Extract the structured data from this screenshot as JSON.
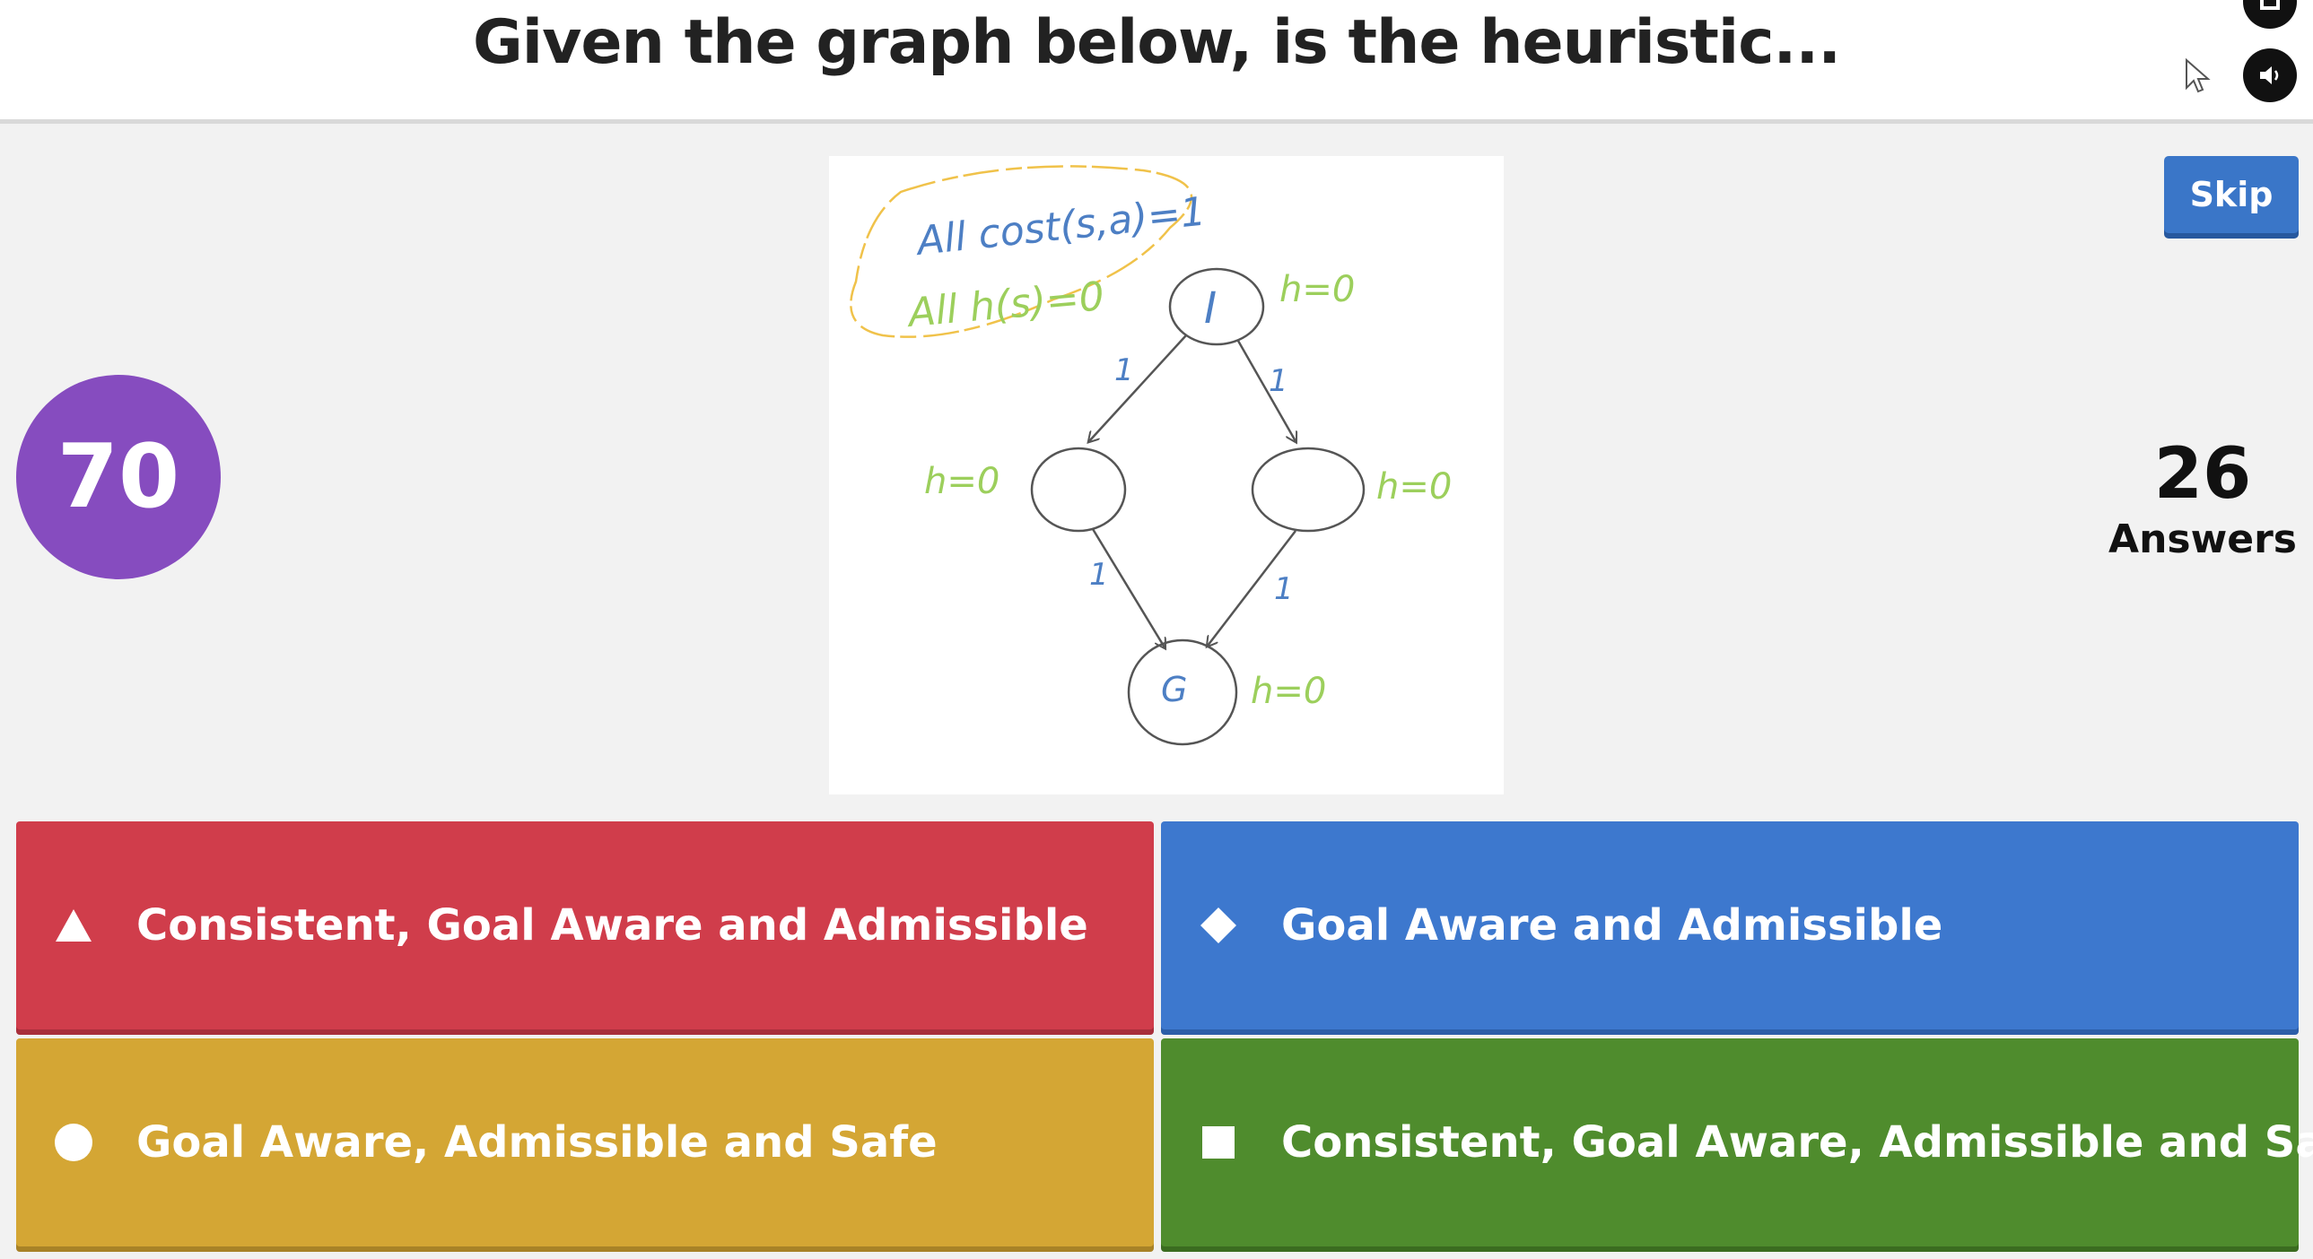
{
  "question": {
    "title": "Given the graph below, is the heuristic..."
  },
  "timer": {
    "value": "70"
  },
  "answers_count": {
    "number": "26",
    "label": "Answers"
  },
  "skip": {
    "label": "Skip"
  },
  "graph": {
    "note_line1": "All cost(s,a)=1",
    "note_line2": "All h(s)=0",
    "node_initial": "I",
    "node_goal": "G",
    "h_initial": "h=0",
    "h_left": "h=0",
    "h_right": "h=0",
    "h_goal": "h=0",
    "edge_cost": "1"
  },
  "options": [
    {
      "label": "Consistent, Goal Aware and Admissible",
      "shape": "triangle-icon",
      "color": "#d03d4b"
    },
    {
      "label": "Goal Aware and Admissible",
      "shape": "diamond-icon",
      "color": "#3d78ce"
    },
    {
      "label": "Goal Aware, Admissible and Safe",
      "shape": "circle-icon",
      "color": "#d4a634"
    },
    {
      "label": "Consistent, Goal Aware, Admissible and Safe",
      "shape": "square-icon",
      "color": "#4f8c2d"
    }
  ],
  "colors": {
    "timer": "#864cbf",
    "skip": "#3a76c8",
    "note_outline": "#f0c24a",
    "green_text": "#9ccf5c",
    "blue_text": "#4d7fc4"
  }
}
